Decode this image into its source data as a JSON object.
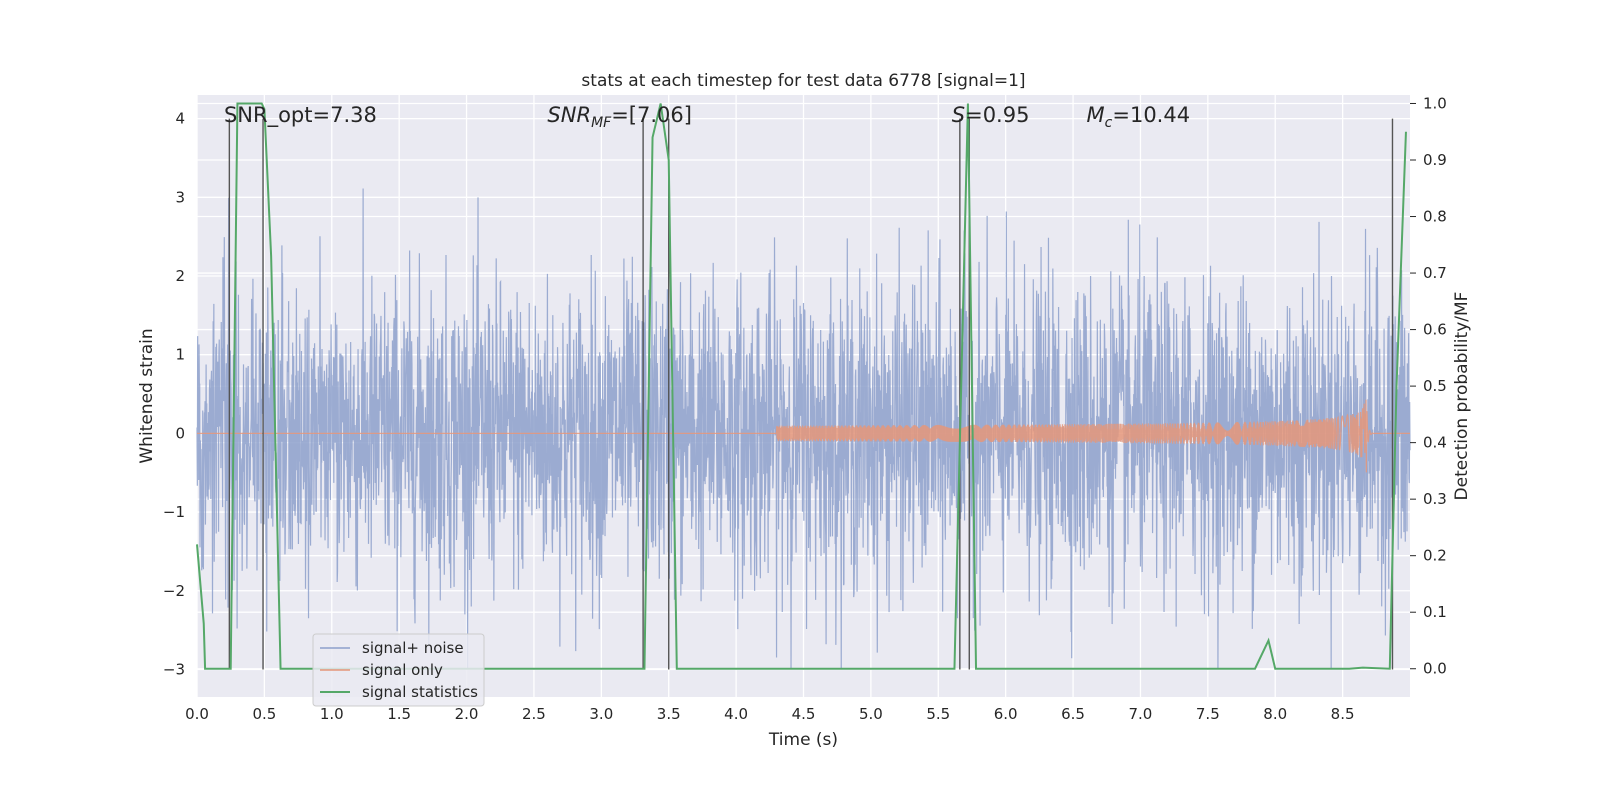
{
  "chart_data": {
    "type": "line",
    "title": "stats at each timestep for test data 6778 [signal=1]",
    "xlabel": "Time (s)",
    "ylabel_left": "Whitened strain",
    "ylabel_right": "Detection probability/MF",
    "xlim": [
      0.0,
      9.0
    ],
    "ylim_left": [
      -3.35,
      4.3
    ],
    "ylim_right": [
      -0.05,
      1.015
    ],
    "x_ticks": [
      "0.0",
      "0.5",
      "1.0",
      "1.5",
      "2.0",
      "2.5",
      "3.0",
      "3.5",
      "4.0",
      "4.5",
      "5.0",
      "5.5",
      "6.0",
      "6.5",
      "7.0",
      "7.5",
      "8.0",
      "8.5"
    ],
    "y_ticks_left": [
      "−3",
      "−2",
      "−1",
      "0",
      "1",
      "2",
      "3",
      "4"
    ],
    "y_ticks_right": [
      "0.0",
      "0.1",
      "0.2",
      "0.3",
      "0.4",
      "0.5",
      "0.6",
      "0.7",
      "0.8",
      "0.9",
      "1.0"
    ],
    "grid": true,
    "legend_position": "lower-left",
    "annotations": [
      {
        "text": "SNR_opt=7.38",
        "x": 0.2
      },
      {
        "text": "SNR",
        "sub": "MF",
        "post": "=[7.06]",
        "x": 2.6
      },
      {
        "text": "S",
        "post": "=0.95",
        "x": 5.6
      },
      {
        "text": "M",
        "sub": "c",
        "post": "=10.44",
        "x": 6.6
      }
    ],
    "series": [
      {
        "name": "signal+ noise",
        "color": "#8da0cb",
        "note": "dense whitened noise, approx Gaussian with sigma ~0.95, spanning roughly -3 to 3.6",
        "sigma": 0.95
      },
      {
        "name": "signal only",
        "color": "#e5967a",
        "chirp_start": 4.3,
        "merger": 8.68,
        "peak_amplitude": 0.95
      },
      {
        "name": "signal statistics",
        "color": "#55a868",
        "axis": "right",
        "points": [
          [
            0.0,
            0.22
          ],
          [
            0.05,
            0.08
          ],
          [
            0.06,
            0.0
          ],
          [
            0.25,
            0.0
          ],
          [
            0.3,
            1.0
          ],
          [
            0.48,
            1.0
          ],
          [
            0.5,
            0.99
          ],
          [
            0.55,
            0.73
          ],
          [
            0.62,
            0.0
          ],
          [
            3.32,
            0.0
          ],
          [
            3.38,
            0.94
          ],
          [
            3.44,
            1.0
          ],
          [
            3.5,
            0.9
          ],
          [
            3.56,
            0.0
          ],
          [
            5.62,
            0.0
          ],
          [
            5.68,
            0.6
          ],
          [
            5.72,
            1.0
          ],
          [
            5.78,
            0.0
          ],
          [
            7.85,
            0.0
          ],
          [
            7.95,
            0.05
          ],
          [
            8.0,
            0.0
          ],
          [
            8.55,
            0.0
          ],
          [
            8.65,
            0.002
          ],
          [
            8.85,
            0.0
          ],
          [
            8.9,
            0.5
          ],
          [
            8.97,
            0.95
          ]
        ]
      }
    ],
    "vertical_lines": [
      0.24,
      0.49,
      3.31,
      3.5,
      5.66,
      5.73,
      8.87
    ]
  }
}
